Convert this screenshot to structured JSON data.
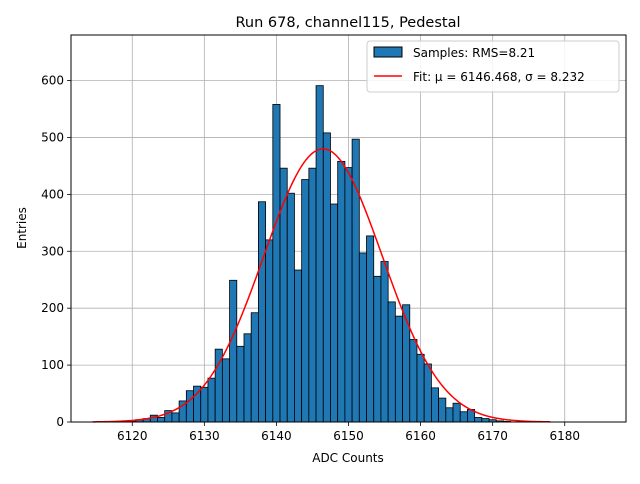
{
  "chart_data": {
    "type": "bar",
    "title": "Run 678, channel115, Pedestal",
    "xlabel": "ADC Counts",
    "ylabel": "Entries",
    "xlim": [
      6111.5,
      6188.5
    ],
    "ylim": [
      0,
      680
    ],
    "x_ticks": [
      6120,
      6130,
      6140,
      6150,
      6160,
      6170,
      6180
    ],
    "y_ticks": [
      0,
      100,
      200,
      300,
      400,
      500,
      600
    ],
    "grid": true,
    "legend_position": "top-right",
    "bin_width": 1,
    "bar_color": "#1f77b4",
    "edge_color": "#000000",
    "fit_color": "#ff0000",
    "histogram": {
      "name": "Samples: RMS=8.21",
      "x": [
        6120,
        6121,
        6122,
        6123,
        6124,
        6125,
        6126,
        6127,
        6128,
        6129,
        6130,
        6131,
        6132,
        6133,
        6134,
        6135,
        6136,
        6137,
        6138,
        6139,
        6140,
        6141,
        6142,
        6143,
        6144,
        6145,
        6146,
        6147,
        6148,
        6149,
        6150,
        6151,
        6152,
        6153,
        6154,
        6155,
        6156,
        6157,
        6158,
        6159,
        6160,
        6161,
        6162,
        6163,
        6164,
        6165,
        6166,
        6167,
        6168,
        6169,
        6170,
        6171,
        6172
      ],
      "values": [
        2,
        4,
        6,
        12,
        8,
        20,
        16,
        37,
        55,
        63,
        61,
        77,
        128,
        111,
        249,
        133,
        155,
        192,
        387,
        320,
        558,
        446,
        402,
        267,
        426,
        446,
        591,
        508,
        383,
        458,
        447,
        497,
        297,
        327,
        256,
        282,
        211,
        186,
        206,
        145,
        119,
        102,
        60,
        42,
        25,
        33,
        18,
        22,
        8,
        6,
        4,
        2,
        1
      ]
    },
    "fit": {
      "name": "Fit: μ = 6146.468, σ = 8.232",
      "mu": 6146.468,
      "sigma": 8.232,
      "amplitude": 480,
      "x_range": [
        6114.5,
        6178
      ]
    }
  }
}
